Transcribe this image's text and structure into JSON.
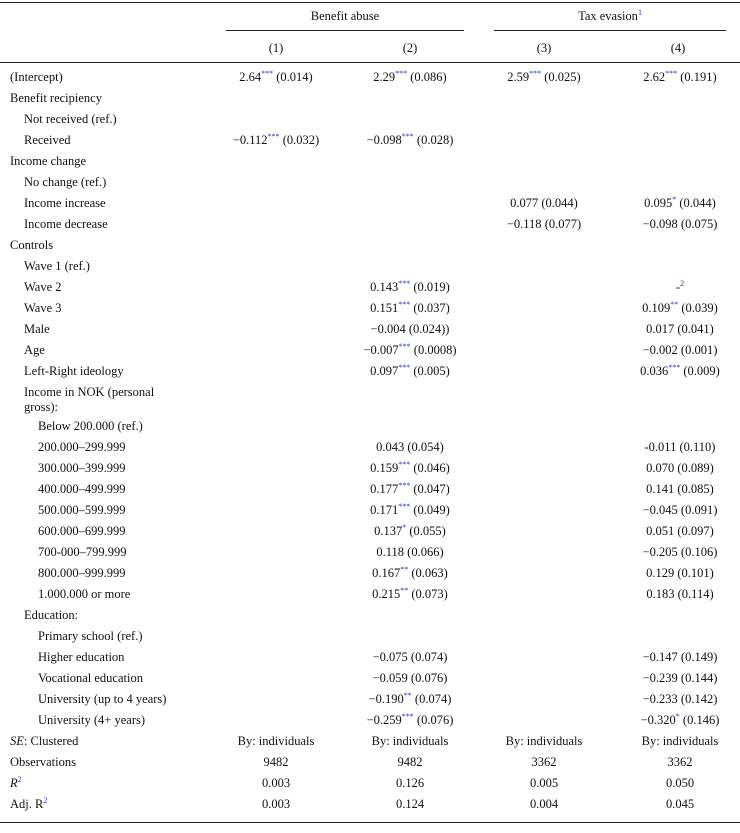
{
  "header": {
    "group1": "Benefit abuse",
    "group2": "Tax evasion",
    "group2_note": "1",
    "cols": [
      "(1)",
      "(2)",
      "(3)",
      "(4)"
    ]
  },
  "rows": [
    {
      "label": "(Intercept)",
      "indent": 0,
      "c": [
        {
          "v": "2.64",
          "s": "***",
          "e": " (0.014)"
        },
        {
          "v": "2.29",
          "s": "***",
          "e": " (0.086)"
        },
        {
          "v": "2.59",
          "s": "***",
          "e": " (0.025)"
        },
        {
          "v": "2.62",
          "s": "***",
          "e": " (0.191)"
        }
      ]
    },
    {
      "label": "Benefit recipiency",
      "indent": 0,
      "c": [
        null,
        null,
        null,
        null
      ]
    },
    {
      "label": "Not received (ref.)",
      "indent": 1,
      "c": [
        null,
        null,
        null,
        null
      ]
    },
    {
      "label": "Received",
      "indent": 1,
      "c": [
        {
          "v": "−0.112",
          "s": "***",
          "e": " (0.032)"
        },
        {
          "v": "−0.098",
          "s": "***",
          "e": " (0.028)"
        },
        null,
        null
      ]
    },
    {
      "label": "Income change",
      "indent": 0,
      "c": [
        null,
        null,
        null,
        null
      ]
    },
    {
      "label": "No change (ref.)",
      "indent": 1,
      "c": [
        null,
        null,
        null,
        null
      ]
    },
    {
      "label": "Income increase",
      "indent": 1,
      "c": [
        null,
        null,
        {
          "v": "0.077",
          "s": "",
          "e": " (0.044)"
        },
        {
          "v": "0.095",
          "s": "*",
          "e": " (0.044)"
        }
      ]
    },
    {
      "label": "Income decrease",
      "indent": 1,
      "c": [
        null,
        null,
        {
          "v": "−0.118",
          "s": "",
          "e": " (0.077)"
        },
        {
          "v": "−0.098",
          "s": "",
          "e": " (0.075)"
        }
      ]
    },
    {
      "label": "Controls",
      "indent": 0,
      "c": [
        null,
        null,
        null,
        null
      ]
    },
    {
      "label": "Wave 1 (ref.)",
      "indent": 1,
      "c": [
        null,
        null,
        null,
        null
      ]
    },
    {
      "label": "Wave 2",
      "indent": 1,
      "c": [
        null,
        {
          "v": "0.143",
          "s": "***",
          "e": " (0.019)"
        },
        null,
        {
          "v": "-",
          "s": "2",
          "e": ""
        }
      ]
    },
    {
      "label": "Wave 3",
      "indent": 1,
      "c": [
        null,
        {
          "v": "0.151",
          "s": "***",
          "e": " (0.037)"
        },
        null,
        {
          "v": "0.109",
          "s": "**",
          "e": " (0.039)"
        }
      ]
    },
    {
      "label": "Male",
      "indent": 1,
      "c": [
        null,
        {
          "v": "−0.004",
          "s": "",
          "e": " (0.024))"
        },
        null,
        {
          "v": "0.017",
          "s": "",
          "e": " (0.041)"
        }
      ]
    },
    {
      "label": "Age",
      "indent": 1,
      "c": [
        null,
        {
          "v": "−0.007",
          "s": "***",
          "e": " (0.0008)"
        },
        null,
        {
          "v": "−0.002",
          "s": "",
          "e": " (0.001)"
        }
      ]
    },
    {
      "label": "Left-Right ideology",
      "indent": 1,
      "c": [
        null,
        {
          "v": "0.097",
          "s": "***",
          "e": " (0.005)"
        },
        null,
        {
          "v": "0.036",
          "s": "***",
          "e": " (0.009)"
        }
      ]
    },
    {
      "label": "Income in NOK (personal",
      "label2": "gross):",
      "indent": 1,
      "c": [
        null,
        null,
        null,
        null
      ]
    },
    {
      "label": "Below 200.000 (ref.)",
      "indent": 2,
      "c": [
        null,
        null,
        null,
        null
      ]
    },
    {
      "label": "200.000–299.999",
      "indent": 2,
      "c": [
        null,
        {
          "v": "0.043",
          "s": "",
          "e": " (0.054)"
        },
        null,
        {
          "v": "-0.011",
          "s": "",
          "e": " (0.110)"
        }
      ]
    },
    {
      "label": "300.000–399.999",
      "indent": 2,
      "c": [
        null,
        {
          "v": "0.159",
          "s": "***",
          "e": " (0.046)"
        },
        null,
        {
          "v": "0.070",
          "s": "",
          "e": " (0.089)"
        }
      ]
    },
    {
      "label": "400.000–499.999",
      "indent": 2,
      "c": [
        null,
        {
          "v": "0.177",
          "s": "***",
          "e": " (0.047)"
        },
        null,
        {
          "v": "0.141",
          "s": "",
          "e": " (0.085)"
        }
      ]
    },
    {
      "label": "500.000–599.999",
      "indent": 2,
      "c": [
        null,
        {
          "v": "0.171",
          "s": "***",
          "e": " (0.049)"
        },
        null,
        {
          "v": "−0.045",
          "s": "",
          "e": " (0.091)"
        }
      ]
    },
    {
      "label": "600.000–699.999",
      "indent": 2,
      "c": [
        null,
        {
          "v": "0.137",
          "s": "*",
          "e": " (0.055)"
        },
        null,
        {
          "v": "0.051",
          "s": "",
          "e": " (0.097)"
        }
      ]
    },
    {
      "label": "700-000–799.999",
      "indent": 2,
      "c": [
        null,
        {
          "v": "0.118",
          "s": "",
          "e": " (0.066)"
        },
        null,
        {
          "v": "−0.205",
          "s": "",
          "e": " (0.106)"
        }
      ]
    },
    {
      "label": "800.000–999.999",
      "indent": 2,
      "c": [
        null,
        {
          "v": "0.167",
          "s": "**",
          "e": " (0.063)"
        },
        null,
        {
          "v": "0.129",
          "s": "",
          "e": " (0.101)"
        }
      ]
    },
    {
      "label": "1.000.000 or more",
      "indent": 2,
      "c": [
        null,
        {
          "v": "0.215",
          "s": "**",
          "e": " (0.073)"
        },
        null,
        {
          "v": "0.183",
          "s": "",
          "e": " (0.114)"
        }
      ]
    },
    {
      "label": "Education:",
      "indent": 1,
      "c": [
        null,
        null,
        null,
        null
      ]
    },
    {
      "label": "Primary school (ref.)",
      "indent": 2,
      "c": [
        null,
        null,
        null,
        null
      ]
    },
    {
      "label": "Higher education",
      "indent": 2,
      "c": [
        null,
        {
          "v": "−0.075",
          "s": "",
          "e": " (0.074)"
        },
        null,
        {
          "v": "−0.147",
          "s": "",
          "e": " (0.149)"
        }
      ]
    },
    {
      "label": "Vocational education",
      "indent": 2,
      "c": [
        null,
        {
          "v": "−0.059",
          "s": "",
          "e": " (0.076)"
        },
        null,
        {
          "v": "−0.239",
          "s": "",
          "e": " (0.144)"
        }
      ]
    },
    {
      "label": "University (up to 4 years)",
      "indent": 2,
      "c": [
        null,
        {
          "v": "−0.190",
          "s": "**",
          "e": " (0.074)"
        },
        null,
        {
          "v": "−0.233",
          "s": "",
          "e": " (0.142)"
        }
      ]
    },
    {
      "label": "University (4+ years)",
      "indent": 2,
      "c": [
        null,
        {
          "v": "−0.259",
          "s": "***",
          "e": " (0.076)"
        },
        null,
        {
          "v": "−0.320",
          "s": "*",
          "e": " (0.146)"
        }
      ]
    }
  ],
  "footer": [
    {
      "label": "SE",
      "label_rest": ": Clustered",
      "vals": [
        "By: individuals",
        "By: individuals",
        "By: individuals",
        "By: individuals"
      ]
    },
    {
      "label": "Observations",
      "label_rest": "",
      "vals": [
        "9482",
        "9482",
        "3362",
        "3362"
      ]
    },
    {
      "label": "R",
      "label_sup": "2",
      "label_rest": "",
      "vals": [
        "0.003",
        "0.126",
        "0.005",
        "0.050"
      ]
    },
    {
      "label": "Adj. R",
      "label_sup": "2",
      "label_rest": "",
      "vals": [
        "0.003",
        "0.124",
        "0.004",
        "0.045"
      ]
    }
  ]
}
